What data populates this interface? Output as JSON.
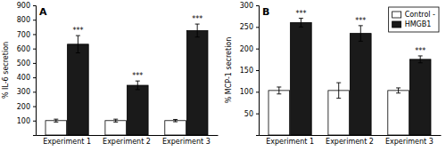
{
  "chart_data": [
    {
      "type": "bar",
      "title": "A",
      "ylabel": "% IL-6 secretion",
      "categories": [
        "Experiment 1",
        "Experiment 2",
        "Experiment 3"
      ],
      "series": [
        {
          "color": "#ffffff",
          "values": [
            100,
            100,
            100
          ],
          "errors": [
            10,
            10,
            8
          ]
        },
        {
          "color": "#1a1a1a",
          "values": [
            630,
            345,
            725
          ],
          "errors": [
            60,
            30,
            45
          ],
          "significance": [
            "***",
            "***",
            "***"
          ]
        }
      ],
      "ylim": [
        0,
        900
      ],
      "yticks": [
        100,
        200,
        300,
        400,
        500,
        600,
        700,
        800,
        900
      ]
    },
    {
      "type": "bar",
      "title": "B",
      "ylabel": "% MCP-1 secretion",
      "categories": [
        "Experiment 1",
        "Experiment 2",
        "Experiment 3"
      ],
      "series": [
        {
          "name": "Control -",
          "color": "#ffffff",
          "values": [
            103,
            103,
            103
          ],
          "errors": [
            8,
            18,
            6
          ]
        },
        {
          "name": "HMGB1",
          "color": "#1a1a1a",
          "values": [
            260,
            235,
            175
          ],
          "errors": [
            10,
            18,
            8
          ],
          "significance": [
            "***",
            "***",
            "***"
          ]
        }
      ],
      "ylim": [
        0,
        300
      ],
      "yticks": [
        50,
        100,
        150,
        200,
        250,
        300
      ],
      "legend": "upper right"
    }
  ]
}
